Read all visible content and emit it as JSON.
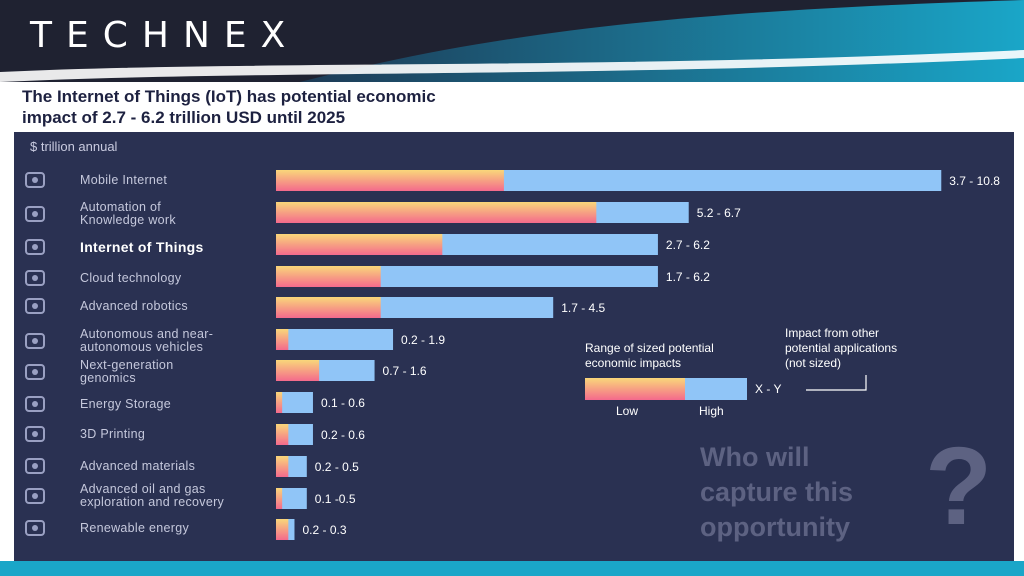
{
  "header": {
    "logo_text": "TECHNEX"
  },
  "title": "The Internet of Things (IoT) has potential economic\nimpact of 2.7 - 6.2 trillion USD until 2025",
  "unit_label": "$ trillion annual",
  "categories": [
    {
      "label": "Mobile Internet",
      "icon": "mobile-icon",
      "highlight": false
    },
    {
      "label": "Automation of\nKnowledge work",
      "icon": "brain-icon",
      "highlight": false
    },
    {
      "label": "Internet of Things",
      "icon": "network-icon",
      "highlight": true
    },
    {
      "label": "Cloud technology",
      "icon": "cloud-icon",
      "highlight": false
    },
    {
      "label": "Advanced robotics",
      "icon": "robot-icon",
      "highlight": false
    },
    {
      "label": "Autonomous and near-\nautonomous vehicles",
      "icon": "car-icon",
      "highlight": false
    },
    {
      "label": "Next-generation\ngenomics",
      "icon": "dna-icon",
      "highlight": false
    },
    {
      "label": "Energy Storage",
      "icon": "battery-icon",
      "highlight": false
    },
    {
      "label": "3D Printing",
      "icon": "printer-icon",
      "highlight": false
    },
    {
      "label": "Advanced materials",
      "icon": "materials-icon",
      "highlight": false
    },
    {
      "label": "Advanced oil and gas\nexploration and recovery",
      "icon": "oil-rig-icon",
      "highlight": false
    },
    {
      "label": "Renewable energy",
      "icon": "solar-panel-icon",
      "highlight": false
    }
  ],
  "chart_data": {
    "type": "bar",
    "orientation": "horizontal",
    "ylabel": "$ trillion annual",
    "categories": [
      "Mobile Internet",
      "Automation of Knowledge work",
      "Internet of Things",
      "Cloud technology",
      "Advanced robotics",
      "Autonomous and near-autonomous vehicles",
      "Next-generation genomics",
      "Energy Storage",
      "3D Printing",
      "Advanced materials",
      "Advanced oil and gas exploration and recovery",
      "Renewable energy"
    ],
    "series": [
      {
        "name": "Low",
        "values": [
          3.7,
          5.2,
          2.7,
          1.7,
          1.7,
          0.2,
          0.7,
          0.1,
          0.2,
          0.2,
          0.1,
          0.2
        ]
      },
      {
        "name": "High",
        "values": [
          10.8,
          6.7,
          6.2,
          6.2,
          4.5,
          1.9,
          1.6,
          0.6,
          0.6,
          0.5,
          0.5,
          0.3
        ]
      }
    ],
    "labels": [
      "3.7 - 10.8",
      "5.2 - 6.7",
      "2.7 - 6.2",
      "1.7 - 6.2",
      "1.7 - 4.5",
      "0.2 - 1.9",
      "0.7 - 1.6",
      "0.1 - 0.6",
      "0.2 - 0.6",
      "0.2 - 0.5",
      "0.1 -0.5",
      "0.2 - 0.3"
    ],
    "xlim": [
      0,
      10.8
    ],
    "colors": {
      "low_top": "#f9d77a",
      "low_bottom": "#f46a8c",
      "high": "#90c5f7"
    }
  },
  "legend": {
    "range_title": "Range of sized potential\neconomic impacts",
    "other_title": "Impact from  other\npotential applications\n(not sized)",
    "xy_label": "X - Y",
    "low_label": "Low",
    "high_label": "High"
  },
  "question": {
    "text": "Who will\ncapture this\nopportunity",
    "mark": "?"
  }
}
